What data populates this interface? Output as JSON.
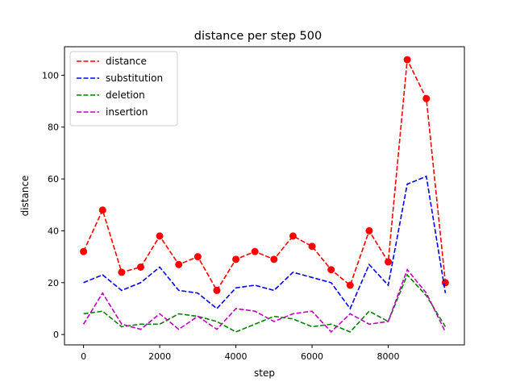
{
  "chart_data": {
    "type": "line",
    "title": "distance per step 500",
    "xlabel": "step",
    "ylabel": "distance",
    "xlim": [
      -500,
      10000
    ],
    "ylim": [
      -4,
      111
    ],
    "xticks": [
      0,
      2000,
      4000,
      6000,
      8000
    ],
    "yticks": [
      0,
      20,
      40,
      60,
      80,
      100
    ],
    "legend_position": "upper-left",
    "grid": false,
    "x": [
      0,
      500,
      1000,
      1500,
      2000,
      2500,
      3000,
      3500,
      4000,
      4500,
      5000,
      5500,
      6000,
      6500,
      7000,
      7500,
      8000,
      8500,
      9000,
      9500
    ],
    "series": [
      {
        "name": "distance",
        "color": "#ff0000",
        "style": "dashed",
        "markers": true,
        "values": [
          32,
          48,
          24,
          26,
          38,
          27,
          30,
          17,
          29,
          32,
          29,
          38,
          34,
          25,
          19,
          40,
          28,
          106,
          91,
          20
        ]
      },
      {
        "name": "substitution",
        "color": "#0000ff",
        "style": "dashed",
        "markers": false,
        "values": [
          20,
          23,
          17,
          20,
          26,
          17,
          16,
          10,
          18,
          19,
          17,
          24,
          22,
          20,
          10,
          27,
          19,
          58,
          61,
          16
        ]
      },
      {
        "name": "deletion",
        "color": "#008000",
        "style": "dashed",
        "markers": false,
        "values": [
          8,
          9,
          3,
          4,
          4,
          8,
          7,
          5,
          1,
          4,
          7,
          6,
          3,
          4,
          1,
          9,
          5,
          23,
          15,
          3
        ]
      },
      {
        "name": "insertion",
        "color": "#bf00bf",
        "style": "dashed",
        "markers": false,
        "values": [
          4,
          16,
          4,
          2,
          8,
          2,
          7,
          2,
          10,
          9,
          5,
          8,
          9,
          1,
          8,
          4,
          5,
          25,
          16,
          1
        ]
      }
    ]
  }
}
